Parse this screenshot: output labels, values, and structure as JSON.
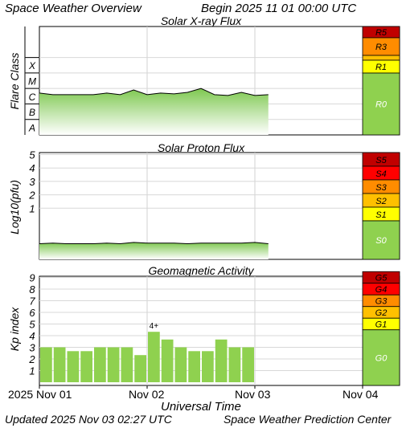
{
  "header": {
    "title": "Space Weather Overview",
    "begin": "Begin 2025 11 01 00:00 UTC"
  },
  "footer": {
    "updated": "Updated 2025 Nov 03 02:27 UTC",
    "credit": "Space Weather Prediction Center",
    "xlabel": "Universal Time"
  },
  "colors": {
    "green": "#8fd14f",
    "yellow": "#ffff00",
    "amber": "#ffc000",
    "orange": "#ff8c00",
    "red": "#ff0000",
    "darkred": "#c00000"
  },
  "chart_data": [
    {
      "type": "area",
      "title": "Solar X-ray Flux",
      "ylabel": "Flare Class",
      "yticks": [
        "A",
        "B",
        "C",
        "M",
        "X"
      ],
      "xlim": [
        0,
        72
      ],
      "x_labels": [
        "2025 Nov 01",
        "Nov 02",
        "Nov 03",
        "Nov 04"
      ],
      "x": [
        0,
        3,
        6,
        9,
        12,
        15,
        18,
        21,
        24,
        27,
        30,
        33,
        36,
        39,
        42,
        45,
        48,
        51
      ],
      "values": [
        2.7,
        2.6,
        2.6,
        2.6,
        2.6,
        2.7,
        2.6,
        2.9,
        2.6,
        2.7,
        2.65,
        2.75,
        3.0,
        2.6,
        2.55,
        2.75,
        2.55,
        2.6
      ],
      "scale_label": [
        "R5",
        "R3",
        "R1",
        "R0"
      ]
    },
    {
      "type": "area",
      "title": "Solar Proton Flux",
      "ylabel": "Log10(pfu)",
      "yticks": [
        "1",
        "2",
        "3",
        "4",
        "5"
      ],
      "xlim": [
        0,
        72
      ],
      "x": [
        0,
        3,
        6,
        9,
        12,
        15,
        18,
        21,
        24,
        27,
        30,
        33,
        36,
        39,
        42,
        45,
        48,
        51
      ],
      "values": [
        -0.35,
        -0.3,
        -0.35,
        -0.35,
        -0.35,
        -0.3,
        -0.35,
        -0.25,
        -0.3,
        -0.3,
        -0.3,
        -0.35,
        -0.3,
        -0.3,
        -0.3,
        -0.3,
        -0.25,
        -0.35
      ],
      "scale_label": [
        "S5",
        "S4",
        "S3",
        "S2",
        "S1",
        "S0"
      ]
    },
    {
      "type": "bar",
      "title": "Geomagnetic Activity",
      "ylabel": "Kp index",
      "yticks": [
        "1",
        "2",
        "3",
        "4",
        "5",
        "6",
        "7",
        "8",
        "9"
      ],
      "ylim": [
        0,
        10
      ],
      "xlim": [
        0,
        72
      ],
      "x": [
        0,
        3,
        6,
        9,
        12,
        15,
        18,
        21,
        24,
        27,
        30,
        33,
        36,
        39,
        42,
        45
      ],
      "values": [
        3,
        3,
        2.67,
        2.67,
        3,
        3,
        3,
        2.33,
        4.33,
        3.67,
        3,
        2.67,
        2.67,
        3.67,
        3,
        3
      ],
      "annotations": [
        {
          "x": 24,
          "label": "4+"
        }
      ],
      "scale_label": [
        "G5",
        "G4",
        "G3",
        "G2",
        "G1",
        "G0"
      ]
    }
  ]
}
